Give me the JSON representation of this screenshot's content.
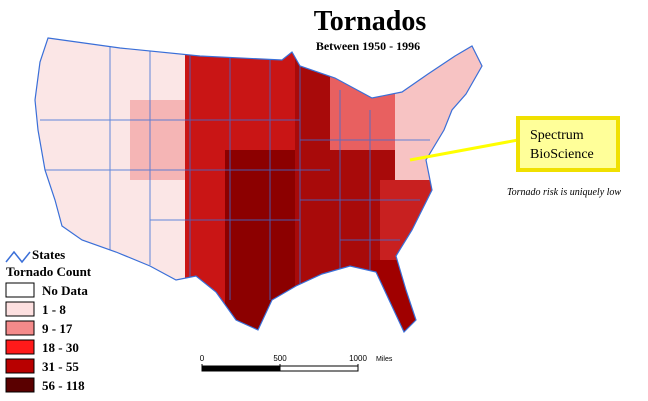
{
  "title": "Tornados",
  "subtitle": "Between 1950 - 1996",
  "legend": {
    "states_label": "States",
    "title": "Tornado Count",
    "classes": [
      {
        "label": "No Data",
        "color": "#ffffff"
      },
      {
        "label": "1 - 8",
        "color": "#fde0e0"
      },
      {
        "label": "9 - 17",
        "color": "#f48a8a"
      },
      {
        "label": "18 - 30",
        "color": "#ff1a1a"
      },
      {
        "label": "31 - 55",
        "color": "#b80000"
      },
      {
        "label": "56 - 118",
        "color": "#5a0000"
      }
    ]
  },
  "callout": {
    "lines": [
      "Spectrum",
      "BioScience"
    ],
    "note": "Tornado risk is uniquely low"
  },
  "scale_bar": {
    "ticks": [
      0,
      500,
      1000
    ],
    "unit": "Miles"
  }
}
